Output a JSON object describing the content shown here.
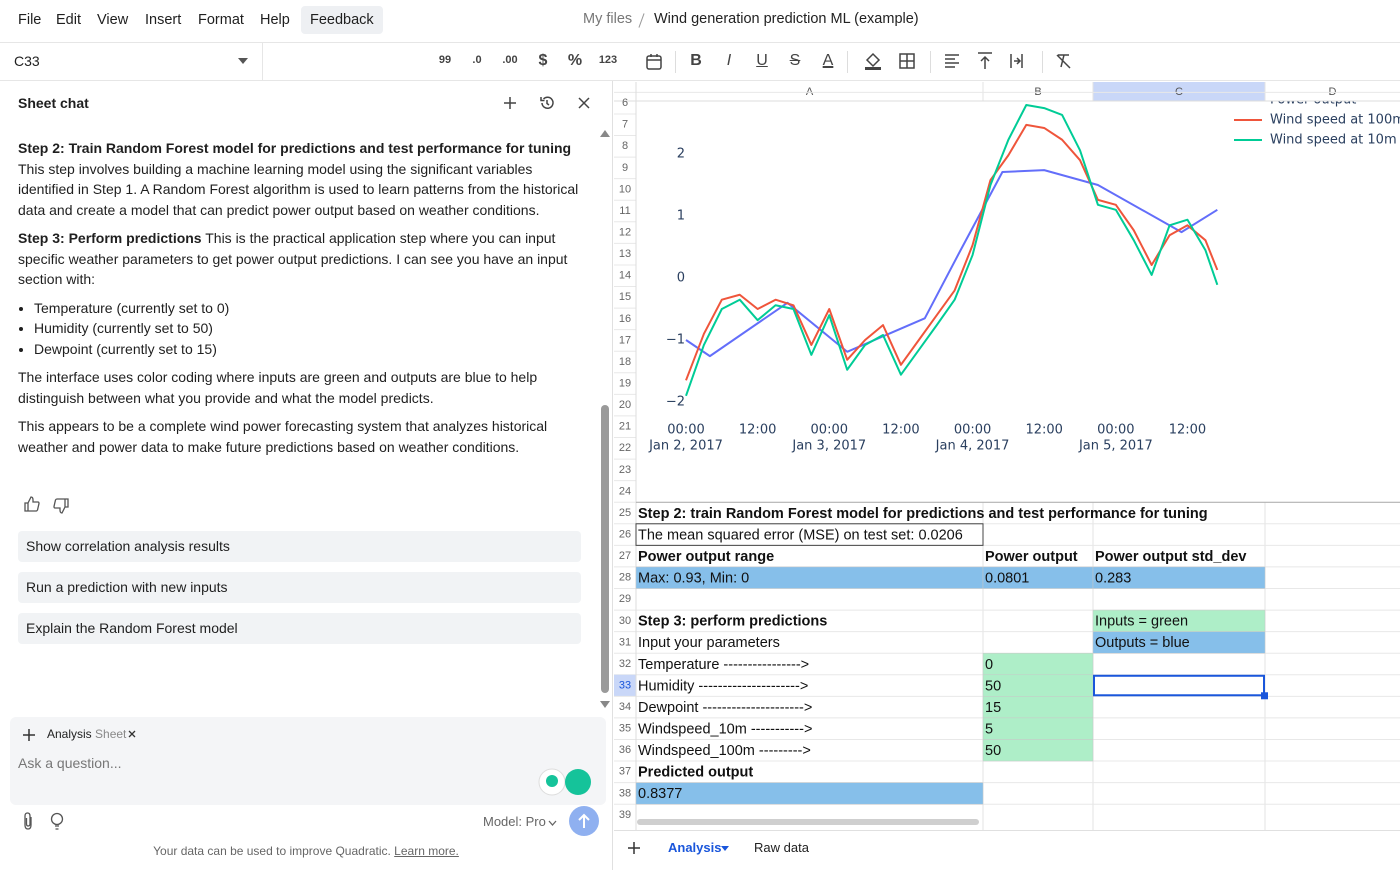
{
  "menu": [
    "File",
    "Edit",
    "View",
    "Insert",
    "Format",
    "Help",
    "Feedback"
  ],
  "breadcrumb": {
    "root": "My files",
    "file": "Wind generation prediction ML (example)"
  },
  "toolbar": {
    "cell_ref": "C33",
    "formats": [
      "99",
      ".0",
      ".00",
      "$",
      "%",
      "123"
    ],
    "styles": [
      "B",
      "I",
      "U",
      "S",
      "A"
    ]
  },
  "chat": {
    "title": "Sheet chat",
    "messages": [
      {
        "bold": "Step 2: Train Random Forest model for predictions and test performance for tuning",
        "text": "This step involves building a machine learning model using the significant variables identified in Step 1. A Random Forest algorithm is used to learn patterns from the historical data and create a model that can predict power output based on weather conditions."
      },
      {
        "bold": "Step 3: Perform predictions",
        "text": "This is the practical application step where you can input specific weather parameters to get power output predictions. I can see you have an input section with:"
      }
    ],
    "bullets": [
      "Temperature (currently set to 0)",
      "Humidity (currently set to 50)",
      "Dewpoint (currently set to 15)"
    ],
    "notes": [
      "The interface uses color coding where inputs are green and outputs are blue to help distinguish between what you provide and what the model predicts.",
      "This appears to be a complete wind power forecasting system that analyzes historical weather and power data to make future predictions based on weather conditions."
    ],
    "suggestions": [
      "Show correlation analysis results",
      "Run a prediction with new inputs",
      "Explain the Random Forest model"
    ],
    "context_chip": {
      "name": "Analysis",
      "type": "Sheet"
    },
    "input_placeholder": "Ask a question...",
    "model": "Model: Pro",
    "footer": "Your data can be used to improve Quadratic.",
    "footer_link": "Learn more."
  },
  "sheet": {
    "columns": [
      "A",
      "B",
      "C",
      "D"
    ],
    "row_numbers": [
      6,
      7,
      8,
      9,
      10,
      11,
      12,
      13,
      14,
      15,
      16,
      17,
      18,
      19,
      20,
      21,
      22,
      23,
      24,
      25,
      26,
      27,
      28,
      29,
      30,
      31,
      32,
      33,
      34,
      35,
      36,
      37,
      38,
      39
    ],
    "cells": {
      "A25": {
        "text": "Step 2: train Random Forest model for predictions and test performance for tuning",
        "bold": true
      },
      "A26": {
        "text": "The mean squared error (MSE) on test set: 0.0206",
        "border": true
      },
      "A27": {
        "text": "Power output range",
        "bold": true
      },
      "B27": {
        "text": "Power output",
        "bold": true
      },
      "C27": {
        "text": "Power output std_dev",
        "bold": true
      },
      "A28": {
        "text": "Max: 0.93, Min: 0",
        "fill": "#86bfea"
      },
      "B28": {
        "text": "0.0801",
        "fill": "#86bfea"
      },
      "C28": {
        "text": "0.283",
        "fill": "#86bfea"
      },
      "A30": {
        "text": "Step 3: perform predictions",
        "bold": true
      },
      "C30": {
        "text": "Inputs = green",
        "fill": "#aeeec8"
      },
      "A31": {
        "text": "Input your parameters"
      },
      "C31": {
        "text": "Outputs = blue",
        "fill": "#86bfea"
      },
      "A32": {
        "text": "Temperature ---------------->"
      },
      "B32": {
        "text": "0",
        "fill": "#aeeec8"
      },
      "A33": {
        "text": "Humidity --------------------->"
      },
      "B33": {
        "text": "50",
        "fill": "#aeeec8"
      },
      "A34": {
        "text": "Dewpoint --------------------->"
      },
      "B34": {
        "text": "15",
        "fill": "#aeeec8"
      },
      "A35": {
        "text": "Windspeed_10m ----------->"
      },
      "B35": {
        "text": "5",
        "fill": "#aeeec8"
      },
      "A36": {
        "text": "Windspeed_100m --------->"
      },
      "B36": {
        "text": "50",
        "fill": "#aeeec8"
      },
      "A37": {
        "text": "Predicted output",
        "bold": true
      },
      "A38": {
        "text": "0.8377",
        "fill": "#86bfea"
      }
    }
  },
  "chart_data": {
    "type": "line",
    "xlim": [
      -5,
      95
    ],
    "ylim": [
      -2.2,
      2.85
    ],
    "xticks": [
      {
        "value": 0,
        "label": "00:00"
      },
      {
        "value": 12,
        "label": "12:00"
      },
      {
        "value": 24,
        "label": "00:00"
      },
      {
        "value": 36,
        "label": "12:00"
      },
      {
        "value": 48,
        "label": "00:00"
      },
      {
        "value": 60,
        "label": "12:00"
      },
      {
        "value": 72,
        "label": "00:00"
      },
      {
        "value": 84,
        "label": "12:00"
      }
    ],
    "xtick_dates": [
      {
        "value": 0,
        "label": "Jan 2, 2017"
      },
      {
        "value": 24,
        "label": "Jan 3, 2017"
      },
      {
        "value": 48,
        "label": "Jan 4, 2017"
      },
      {
        "value": 72,
        "label": "Jan 5, 2017"
      }
    ],
    "yticks": [
      {
        "value": -2,
        "label": "−2"
      },
      {
        "value": -1,
        "label": "−1"
      },
      0,
      1,
      2
    ],
    "legend": "top-right",
    "series": [
      {
        "name": "Power output",
        "color": "#636efa",
        "x": [
          0,
          4,
          17,
          27,
          40,
          46,
          53,
          60,
          69,
          83,
          89
        ],
        "values": [
          -1.0,
          -1.26,
          -0.4,
          -1.19,
          -0.65,
          0.45,
          1.71,
          1.74,
          1.5,
          0.74,
          1.1
        ]
      },
      {
        "name": "Wind speed at 100m",
        "color": "#ef553b",
        "x": [
          0,
          3,
          6,
          9,
          12,
          15,
          18,
          21,
          24,
          27,
          30,
          33,
          36,
          39,
          42,
          45,
          48,
          51,
          54,
          57,
          60,
          63,
          66,
          69,
          72,
          75,
          78,
          81,
          84,
          87,
          89
        ],
        "values": [
          -1.65,
          -0.9,
          -0.35,
          -0.27,
          -0.5,
          -0.35,
          -0.44,
          -1.08,
          -0.5,
          -1.32,
          -1.0,
          -0.76,
          -1.4,
          -1.0,
          -0.6,
          -0.2,
          0.53,
          1.58,
          1.98,
          2.47,
          2.42,
          2.23,
          1.9,
          1.26,
          1.18,
          0.77,
          0.21,
          0.69,
          0.85,
          0.61,
          0.13
        ]
      },
      {
        "name": "Wind speed at 10m",
        "color": "#00cc96",
        "x": [
          0,
          3,
          6,
          9,
          12,
          15,
          18,
          21,
          24,
          27,
          30,
          33,
          36,
          39,
          42,
          45,
          48,
          51,
          54,
          57,
          60,
          63,
          66,
          69,
          72,
          75,
          78,
          81,
          84,
          87,
          89
        ],
        "values": [
          -1.9,
          -1.08,
          -0.5,
          -0.35,
          -0.68,
          -0.44,
          -0.5,
          -1.24,
          -0.6,
          -1.48,
          -1.08,
          -0.92,
          -1.56,
          -1.16,
          -0.76,
          -0.35,
          0.37,
          1.5,
          2.23,
          2.79,
          2.74,
          2.63,
          2.06,
          1.18,
          1.1,
          0.61,
          0.05,
          0.85,
          0.94,
          0.45,
          -0.11
        ]
      }
    ]
  },
  "tabs": [
    "Analysis",
    "Raw data"
  ]
}
